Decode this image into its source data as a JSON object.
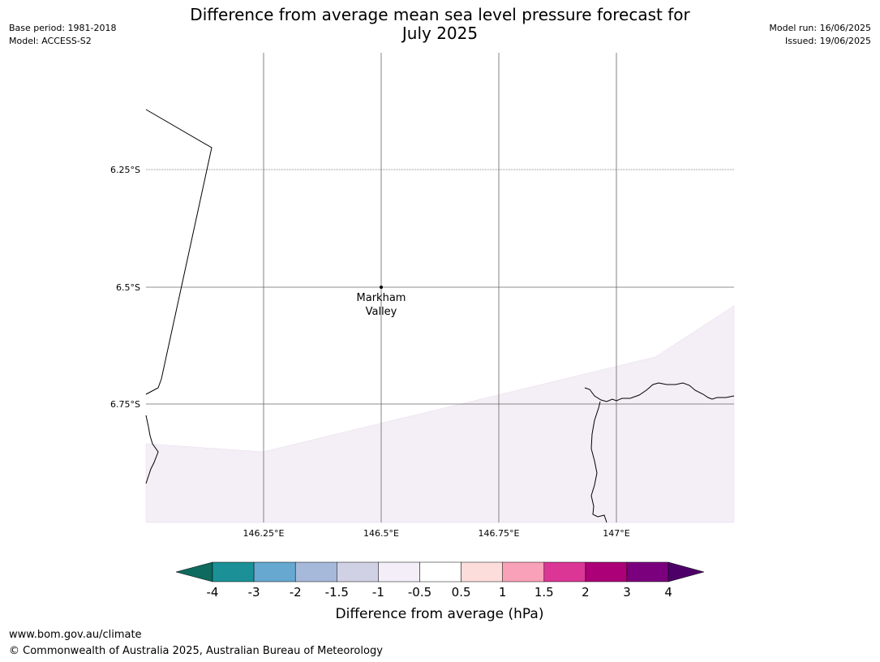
{
  "header": {
    "title_line1": "Difference from average mean sea level pressure forecast for",
    "title_line2": "July 2025",
    "base_period": "Base period: 1981-2018",
    "model": "Model: ACCESS-S2",
    "model_run": "Model run: 16/06/2025",
    "issued": "Issued: 19/06/2025"
  },
  "map": {
    "lat_labels": [
      "6.25°S",
      "6.5°S",
      "6.75°S"
    ],
    "lon_labels": [
      "146.25°E",
      "146.5°E",
      "146.75°E",
      "147°E"
    ],
    "location": {
      "name_line1": "Markham",
      "name_line2": "Valley"
    },
    "shading_category": "-1 to -0.5",
    "shading_color": "#f4eef6"
  },
  "colorbar": {
    "title": "Difference from average (hPa)",
    "ticks": [
      "-4",
      "-3",
      "-2",
      "-1.5",
      "-1",
      "-0.5",
      "0.5",
      "1",
      "1.5",
      "2",
      "3",
      "4"
    ],
    "colors": [
      "#0e6a5e",
      "#1b9197",
      "#66a8cf",
      "#a6b9db",
      "#d1d1e5",
      "#f3eef7",
      "#ffffff",
      "#fddcdc",
      "#f8a1b8",
      "#db3696",
      "#ab0077",
      "#7a007d",
      "#4d0068"
    ]
  },
  "footer": {
    "url": "www.bom.gov.au/climate",
    "copyright": "© Commonwealth of Australia 2025, Australian Bureau of Meteorology"
  }
}
